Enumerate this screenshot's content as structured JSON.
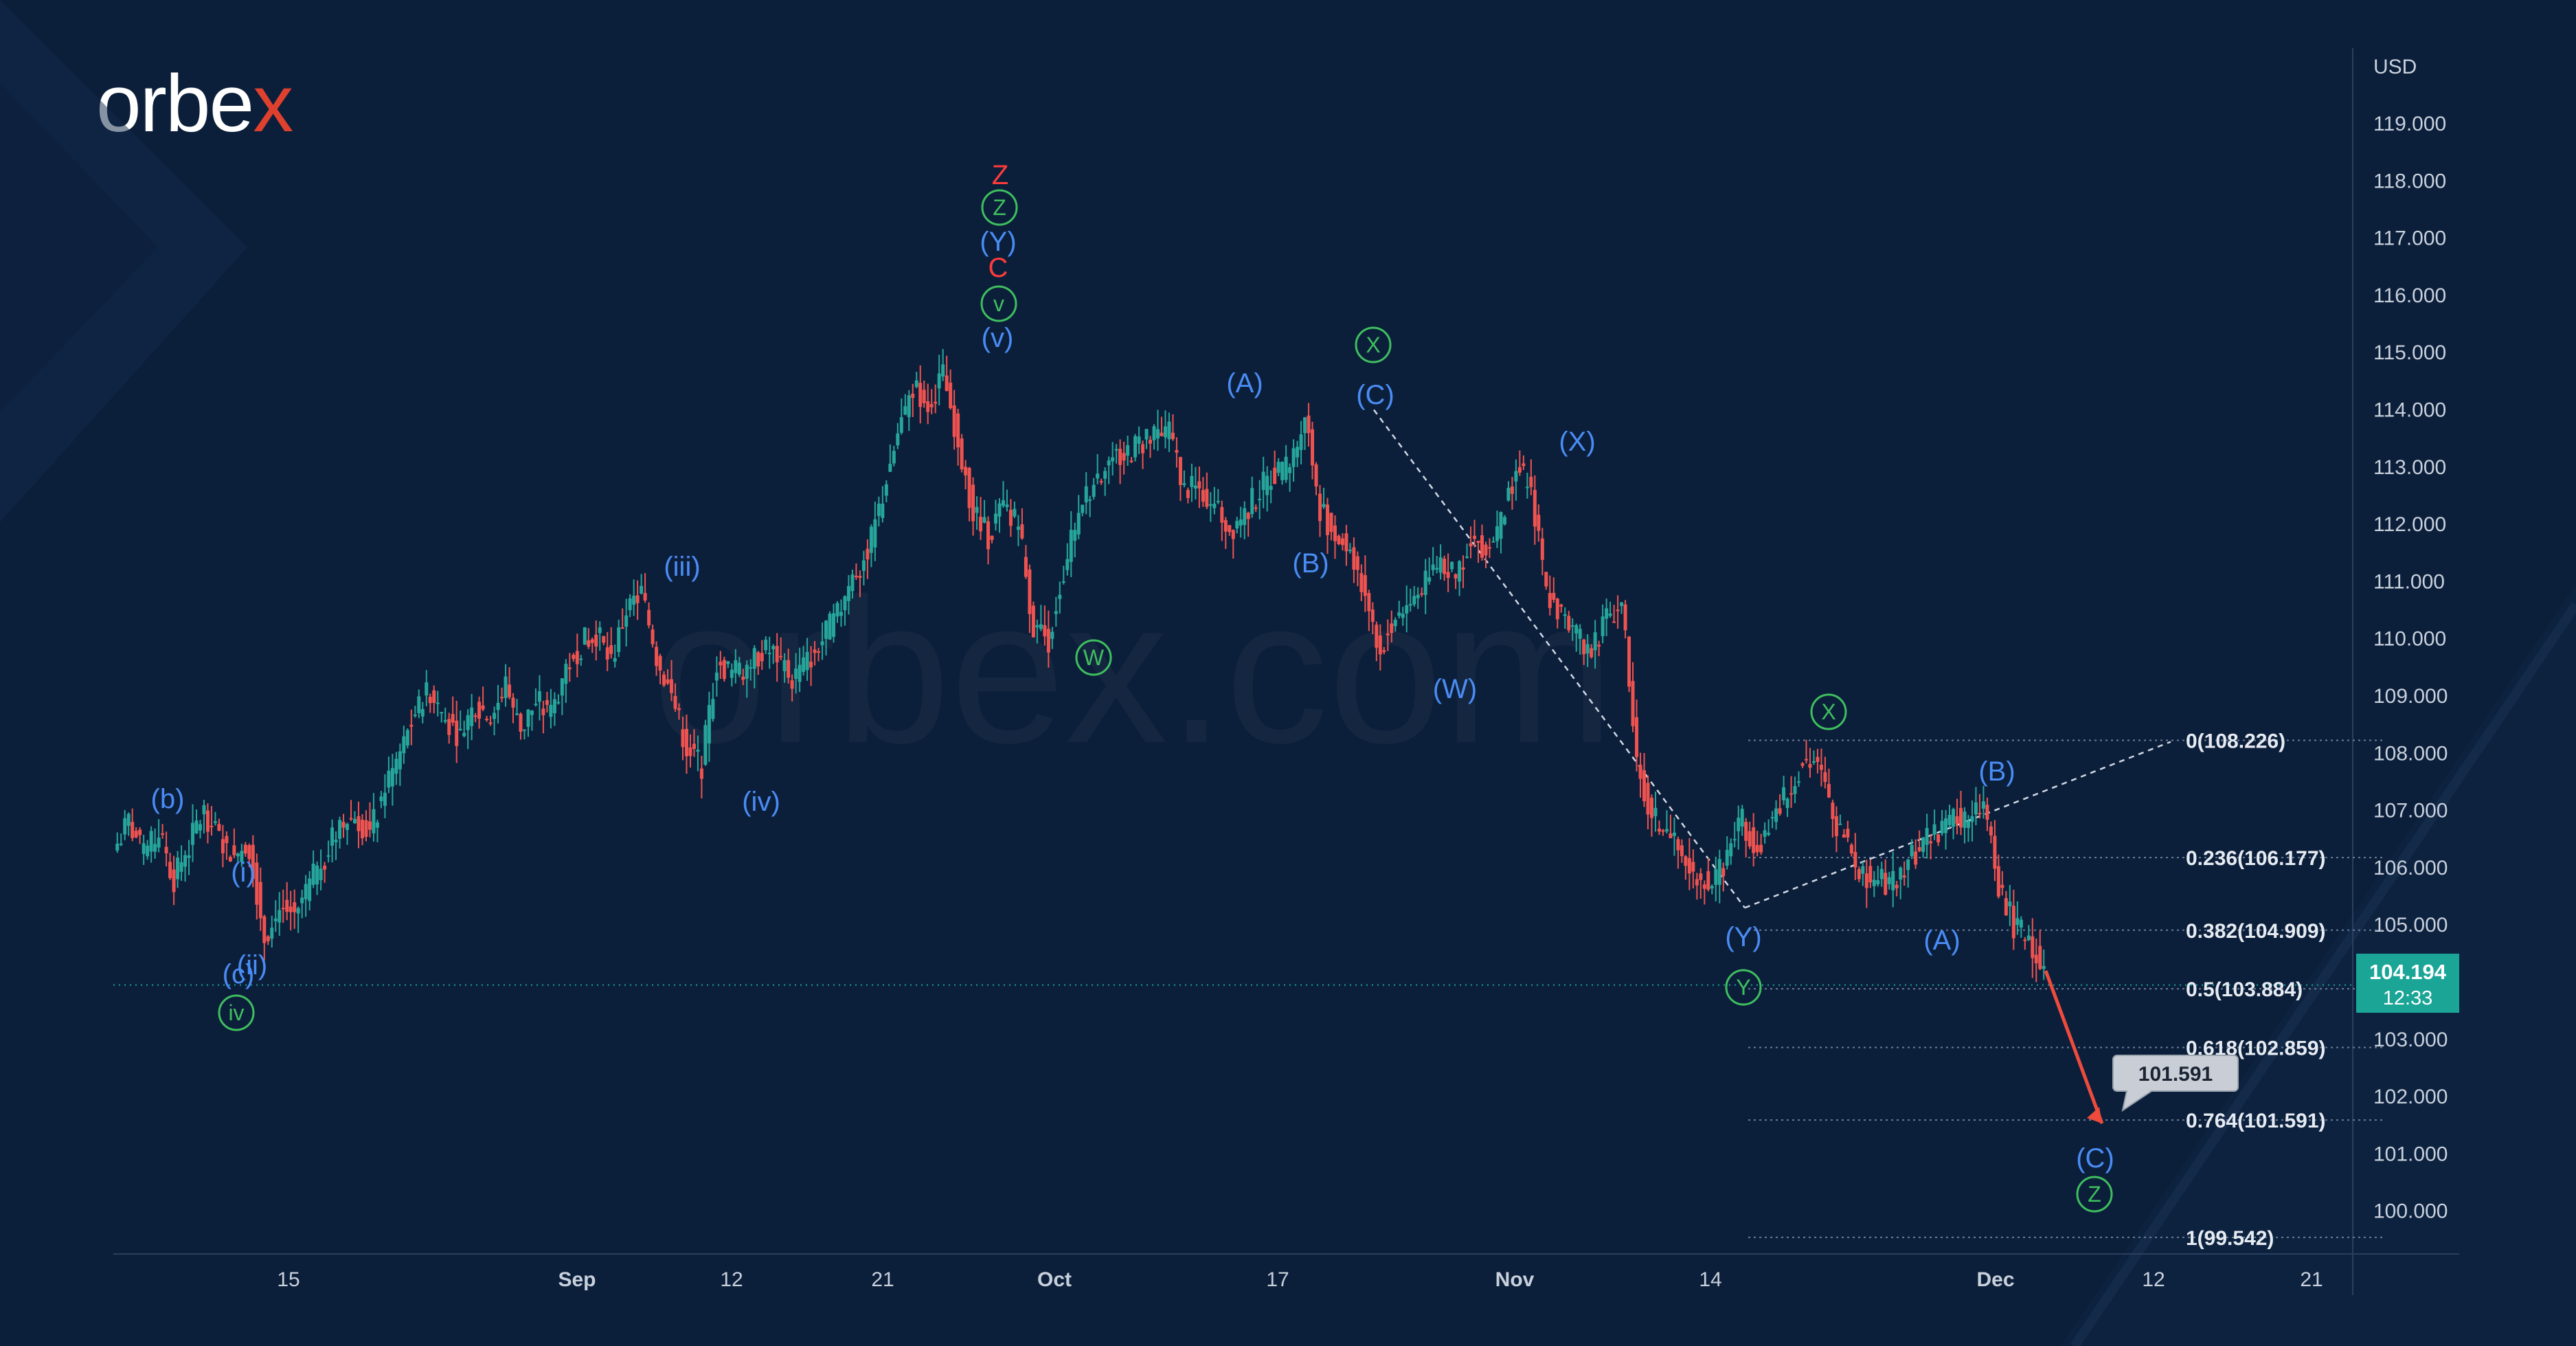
{
  "brand": {
    "name": "orbex",
    "watermark": "orbex.com",
    "colors": {
      "primary": "#ffffff",
      "accent": "#e0412e"
    }
  },
  "chart_data": {
    "type": "candlestick",
    "currency": "USD",
    "ylim": [
      99.0,
      120.0
    ],
    "yticks": [
      "119.000",
      "118.000",
      "117.000",
      "116.000",
      "115.000",
      "114.000",
      "113.000",
      "112.000",
      "111.000",
      "110.000",
      "109.000",
      "108.000",
      "107.000",
      "106.000",
      "105.000",
      "104.000",
      "103.000",
      "102.000",
      "101.000",
      "100.000"
    ],
    "x_tick_labels": [
      "15",
      "Sep",
      "12",
      "21",
      "Oct",
      "17",
      "Nov",
      "14",
      "Dec",
      "12",
      "21"
    ],
    "current_price": {
      "value": "104.194",
      "timer": "12:33"
    },
    "price_path": [
      106.3,
      106.8,
      106.2,
      106.6,
      105.8,
      106.4,
      107.0,
      106.5,
      106.2,
      106.4,
      104.8,
      105.3,
      105.2,
      105.7,
      106.2,
      106.8,
      106.9,
      106.6,
      107.4,
      108.0,
      108.7,
      109.1,
      108.6,
      108.3,
      108.9,
      108.6,
      109.2,
      108.4,
      108.9,
      108.7,
      109.5,
      109.9,
      110.1,
      109.6,
      110.5,
      110.8,
      109.7,
      109.0,
      108.1,
      107.8,
      109.6,
      109.4,
      109.5,
      109.8,
      109.7,
      109.3,
      109.6,
      110.0,
      110.4,
      111.1,
      111.5,
      112.5,
      113.6,
      114.4,
      114.1,
      114.6,
      113.5,
      112.2,
      111.8,
      112.3,
      112.0,
      110.2,
      110.0,
      111.2,
      112.2,
      112.8,
      113.1,
      113.2,
      113.4,
      113.5,
      113.6,
      112.6,
      112.6,
      112.4,
      111.9,
      112.2,
      112.6,
      112.9,
      113.0,
      113.9,
      112.3,
      111.8,
      111.6,
      110.8,
      109.8,
      110.4,
      110.6,
      111.0,
      111.4,
      111.0,
      111.8,
      111.6,
      112.0,
      113.0,
      112.6,
      110.8,
      110.4,
      110.0,
      109.8,
      110.4,
      110.6,
      107.8,
      106.9,
      106.6,
      106.2,
      105.9,
      105.7,
      106.2,
      106.8,
      106.4,
      106.8,
      107.3,
      107.9,
      107.8,
      106.9,
      106.4,
      105.9,
      105.8,
      105.7,
      106.2,
      106.4,
      106.6,
      106.9,
      106.8,
      107.1,
      105.7,
      105.0,
      104.8,
      104.2
    ],
    "projection": {
      "from": 104.2,
      "to": 101.591,
      "target_label": "101.591"
    },
    "fibonacci": [
      {
        "label": "0(108.226)",
        "value": 108.226
      },
      {
        "label": "0.236(106.177)",
        "value": 106.177
      },
      {
        "label": "0.382(104.909)",
        "value": 104.909
      },
      {
        "label": "0.5(103.884)",
        "value": 103.884
      },
      {
        "label": "0.618(102.859)",
        "value": 102.859
      },
      {
        "label": "0.764(101.591)",
        "value": 101.591
      },
      {
        "label": "1(99.542)",
        "value": 99.542
      }
    ],
    "wave_labels": [
      {
        "text": "(b)",
        "style": "blue"
      },
      {
        "text": "(i)",
        "style": "blue"
      },
      {
        "text": "(ii)",
        "style": "blue"
      },
      {
        "text": "(c)",
        "style": "blue"
      },
      {
        "text": "iv",
        "style": "green"
      },
      {
        "text": "(iii)",
        "style": "blue"
      },
      {
        "text": "(iv)",
        "style": "blue"
      },
      {
        "text": "Z",
        "style": "red"
      },
      {
        "text": "Z",
        "style": "green"
      },
      {
        "text": "(Y)",
        "style": "blue"
      },
      {
        "text": "C",
        "style": "red"
      },
      {
        "text": "v",
        "style": "green"
      },
      {
        "text": "(v)",
        "style": "blue"
      },
      {
        "text": "W",
        "style": "green"
      },
      {
        "text": "(A)",
        "style": "blue"
      },
      {
        "text": "(B)",
        "style": "blue"
      },
      {
        "text": "X",
        "style": "green"
      },
      {
        "text": "(C)",
        "style": "blue"
      },
      {
        "text": "(W)",
        "style": "blue"
      },
      {
        "text": "(X)",
        "style": "blue"
      },
      {
        "text": "X",
        "style": "green"
      },
      {
        "text": "(Y)",
        "style": "blue"
      },
      {
        "text": "Y",
        "style": "green"
      },
      {
        "text": "(A)",
        "style": "blue"
      },
      {
        "text": "(B)",
        "style": "blue"
      },
      {
        "text": "(C)",
        "style": "blue"
      },
      {
        "text": "Z",
        "style": "green"
      }
    ],
    "colors": {
      "up": "#26a69a",
      "down": "#ef5350",
      "wave_blue": "#4a8cf5",
      "wave_green": "#3fbf5f",
      "wave_red": "#ff3b3b",
      "projection": "#ef4b3c",
      "price_tag": "#1aa597",
      "background": "#0c1f3a"
    }
  }
}
